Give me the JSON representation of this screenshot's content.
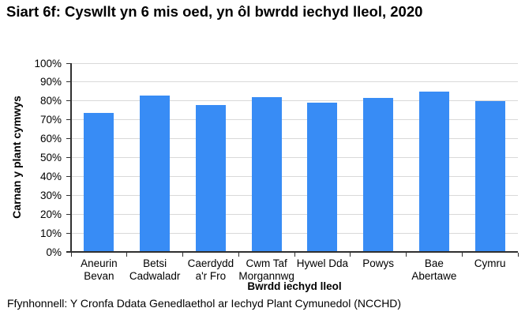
{
  "page": {
    "title": "Siart 6f: Cyswllt yn 6 mis oed, yn ôl bwrdd iechyd lleol, 2020",
    "source": "Ffynhonnell: Y Cronfa Ddata Genedlaethol ar Iechyd Plant Cymunedol (NCCHD)"
  },
  "chart_data": {
    "type": "bar",
    "title": "Siart 6f: Cyswllt yn 6 mis oed, yn ôl bwrdd iechyd lleol, 2020",
    "categories": [
      "Aneurin Bevan",
      "Betsi Cadwaladr",
      "Caerdydd a'r Fro",
      "Cwm Taf Morgannwg",
      "Hywel Dda",
      "Powys",
      "Bae Abertawe",
      "Cymru"
    ],
    "category_lines": [
      [
        "Aneurin",
        "Bevan"
      ],
      [
        "Betsi",
        "Cadwaladr"
      ],
      [
        "Caerdydd",
        "a'r Fro"
      ],
      [
        "Cwm Taf",
        "Morgannwg"
      ],
      [
        "Hywel Dda"
      ],
      [
        "Powys"
      ],
      [
        "Bae",
        "Abertawe"
      ],
      [
        "Cymru"
      ]
    ],
    "values": [
      73.5,
      83,
      78,
      82,
      79,
      81.5,
      85,
      80
    ],
    "xlabel": "Bwrdd iechyd lleol",
    "ylabel": "Carnan y plant cymwys",
    "ylim": [
      0,
      100
    ],
    "ytick_step": 10,
    "ytick_labels": [
      "0%",
      "10%",
      "20%",
      "30%",
      "40%",
      "50%",
      "60%",
      "70%",
      "80%",
      "90%",
      "100%"
    ],
    "grid": true,
    "legend": "none",
    "bar_color": "#388CF5",
    "gridline_color": "#D9D9D9",
    "axis_color": "#303030",
    "text_color": "#000000"
  }
}
